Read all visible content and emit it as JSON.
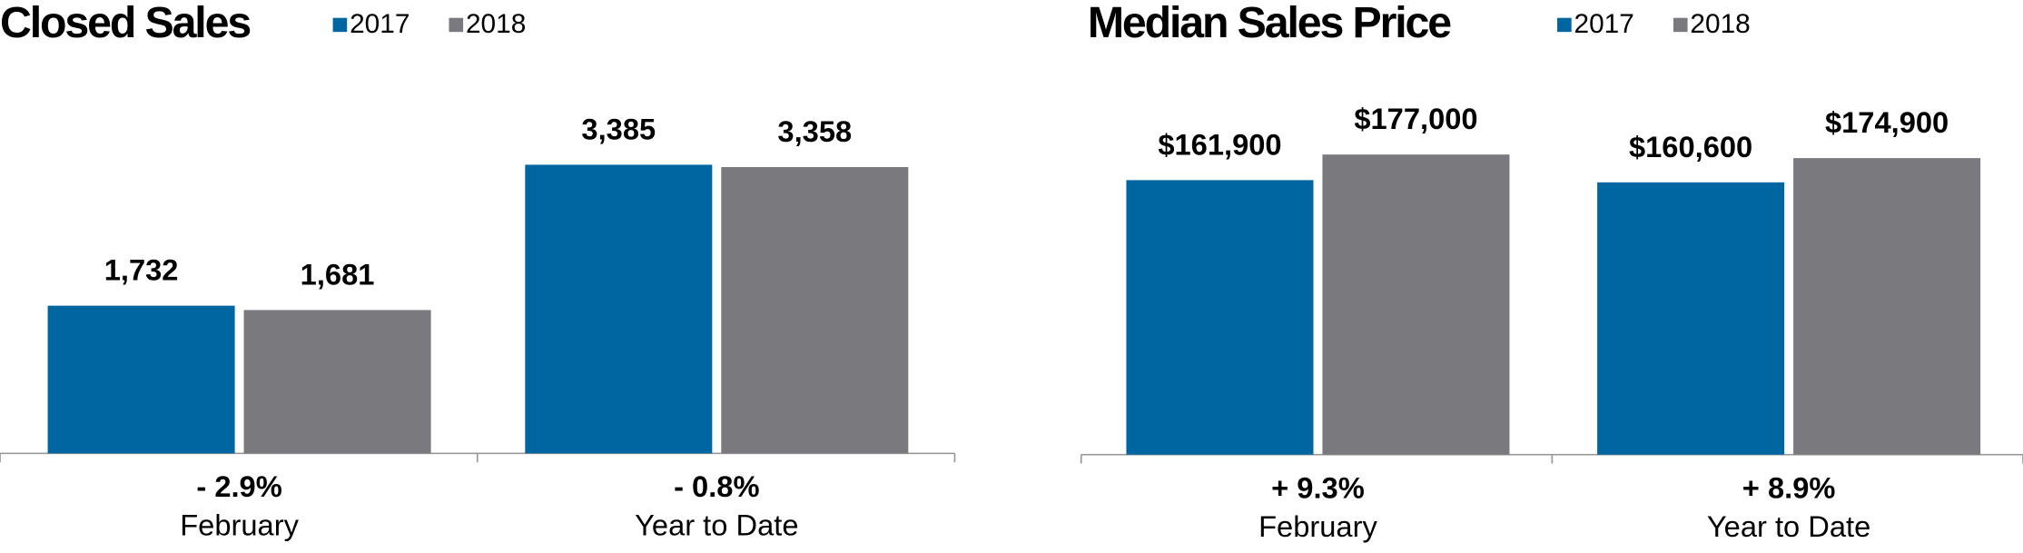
{
  "chart_data": [
    {
      "type": "bar",
      "title": "Closed Sales",
      "categories": [
        "February",
        "Year to Date"
      ],
      "change_labels": [
        "- 2.9%",
        "- 0.8%"
      ],
      "series": [
        {
          "name": "2017",
          "color": "#0066a1",
          "values": [
            1732,
            3385
          ],
          "value_labels": [
            "1,732",
            "3,385"
          ]
        },
        {
          "name": "2018",
          "color": "#7a797e",
          "values": [
            1681,
            3358
          ],
          "value_labels": [
            "1,681",
            "3,358"
          ]
        }
      ]
    },
    {
      "type": "bar",
      "title": "Median Sales Price",
      "categories": [
        "February",
        "Year to Date"
      ],
      "change_labels": [
        "+ 9.3%",
        "+ 8.9%"
      ],
      "series": [
        {
          "name": "2017",
          "color": "#0066a1",
          "values": [
            161900,
            160600
          ],
          "value_labels": [
            "$161,900",
            "$160,600"
          ]
        },
        {
          "name": "2018",
          "color": "#7a797e",
          "values": [
            177000,
            174900
          ],
          "value_labels": [
            "$177,000",
            "$174,900"
          ]
        }
      ]
    }
  ]
}
